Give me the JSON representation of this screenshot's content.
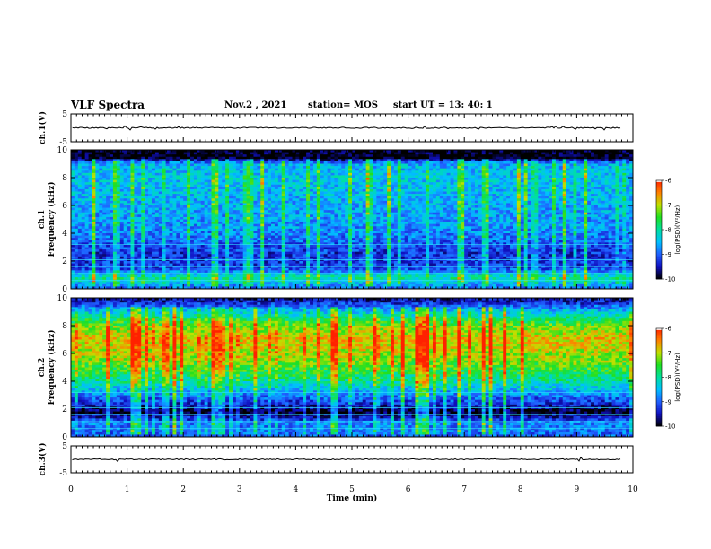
{
  "header": {
    "title": "VLF Spectra",
    "date": "Nov.2 , 2021",
    "station": "station= MOS",
    "start_ut": "start UT = 13: 40: 1"
  },
  "colors": {
    "colormap": [
      "#000000",
      "#1010c0",
      "#2060ff",
      "#00c0ff",
      "#00e0a0",
      "#20e020",
      "#c0e000",
      "#ff8000",
      "#ff2000",
      "#ffffff"
    ]
  },
  "chart_data": [
    {
      "type": "line",
      "panel": "ch1",
      "ylabel": "ch.1(V)",
      "yticks": [
        "5",
        "-5"
      ],
      "ylim": [
        -5,
        5
      ],
      "x": [
        0,
        10
      ],
      "values": [
        0,
        0
      ]
    },
    {
      "type": "heatmap",
      "panel": "spec1",
      "ylabel_top": "ch.1",
      "ylabel": "Frequency (kHz)",
      "yticks": [
        "0",
        "2",
        "4",
        "6",
        "8",
        "10"
      ],
      "ylim": [
        0,
        10
      ],
      "xlim": [
        0,
        10
      ],
      "colorbar": {
        "label": "log(PSD)(V²/Hz)",
        "ticks": [
          "-6",
          "-7",
          "-8",
          "-9",
          "-10"
        ],
        "range": [
          -10,
          -6
        ]
      },
      "intensity_profile_khz": [
        [
          0,
          -9.0
        ],
        [
          0.8,
          -8.0
        ],
        [
          1.5,
          -9.2
        ],
        [
          2.5,
          -9.3
        ],
        [
          4,
          -8.8
        ],
        [
          6,
          -8.6
        ],
        [
          8,
          -8.4
        ],
        [
          9,
          -8.6
        ],
        [
          9.4,
          -10
        ],
        [
          10,
          -10
        ]
      ]
    },
    {
      "type": "heatmap",
      "panel": "spec2",
      "ylabel_top": "ch.2",
      "ylabel": "Frequency (kHz)",
      "yticks": [
        "0",
        "2",
        "4",
        "6",
        "8",
        "10"
      ],
      "ylim": [
        0,
        10
      ],
      "xlim": [
        0,
        10
      ],
      "colorbar": {
        "label": "log(PSD)(V²/Hz)",
        "ticks": [
          "-6",
          "-7",
          "-8",
          "-9",
          "-10"
        ],
        "range": [
          -10,
          -6
        ]
      },
      "intensity_profile_khz": [
        [
          0,
          -9.0
        ],
        [
          1,
          -8.8
        ],
        [
          1.8,
          -10
        ],
        [
          2.3,
          -9.4
        ],
        [
          4,
          -8.0
        ],
        [
          5.5,
          -7.2
        ],
        [
          7,
          -6.8
        ],
        [
          8,
          -7.3
        ],
        [
          9,
          -8.4
        ],
        [
          9.7,
          -9.4
        ],
        [
          10,
          -9.6
        ]
      ]
    },
    {
      "type": "line",
      "panel": "ch3",
      "ylabel": "ch.3(V)",
      "yticks": [
        "5",
        "-5"
      ],
      "ylim": [
        -5,
        5
      ],
      "x": [
        0,
        10
      ],
      "values": [
        0,
        0
      ]
    }
  ],
  "xaxis": {
    "label": "Time (min)",
    "ticks": [
      "0",
      "1",
      "2",
      "3",
      "4",
      "5",
      "6",
      "7",
      "8",
      "9",
      "10"
    ],
    "xlim": [
      0,
      10
    ]
  }
}
